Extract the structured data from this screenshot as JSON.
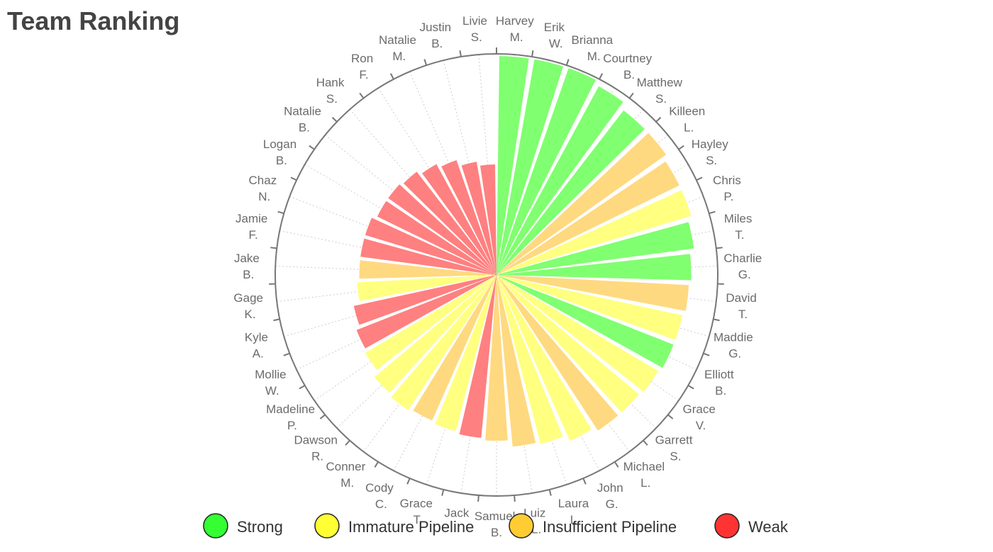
{
  "chart_data": {
    "type": "polar-bar",
    "title": "Team Ranking",
    "categories": [
      "Harvey M.",
      "Erik W.",
      "Brianna M.",
      "Courtney B.",
      "Matthew S.",
      "Killeen L.",
      "Hayley S.",
      "Chris P.",
      "Miles T.",
      "Charlie G.",
      "David T.",
      "Maddie G.",
      "Elliott B.",
      "Grace V.",
      "Garrett S.",
      "Michael L.",
      "John G.",
      "Laura L.",
      "Luiz L.",
      "Samuel B.",
      "Jack",
      "Grace T.",
      "Cody C.",
      "Conner M.",
      "Dawson R.",
      "Madeline P.",
      "Mollie W.",
      "Kyle A.",
      "Gage K.",
      "Jake B.",
      "Jamie F.",
      "Chaz N.",
      "Logan B.",
      "Natalie B.",
      "Hank S.",
      "Ron F.",
      "Natalie M.",
      "Justin B.",
      "Livie S."
    ],
    "rlim": [
      0,
      100
    ],
    "series": [
      {
        "name": "Strong",
        "color": "#80ff70",
        "marker_color": "#33ff33",
        "values": [
          99,
          99,
          99,
          97,
          94,
          null,
          null,
          null,
          90,
          88,
          null,
          null,
          86,
          null,
          null,
          null,
          null,
          null,
          null,
          null,
          null,
          null,
          null,
          null,
          null,
          null,
          null,
          null,
          null,
          null,
          null,
          null,
          null,
          null,
          null,
          null,
          null,
          null,
          null
        ]
      },
      {
        "name": "Immature Pipeline",
        "color": "#ffff80",
        "marker_color": "#ffff33",
        "values": [
          null,
          null,
          null,
          null,
          null,
          null,
          null,
          92,
          null,
          null,
          null,
          86,
          null,
          85,
          84,
          null,
          82,
          79,
          null,
          null,
          null,
          73,
          null,
          73,
          72,
          69,
          null,
          null,
          63,
          null,
          null,
          null,
          null,
          null,
          null,
          null,
          null,
          null,
          null
        ]
      },
      {
        "name": "Insufficient Pipeline",
        "color": "#ffd980",
        "marker_color": "#ffcc33",
        "values": [
          null,
          null,
          null,
          null,
          null,
          94,
          92,
          null,
          null,
          null,
          87,
          null,
          null,
          null,
          null,
          84,
          null,
          null,
          78,
          75,
          null,
          null,
          72,
          null,
          null,
          null,
          null,
          null,
          null,
          62,
          null,
          null,
          null,
          null,
          null,
          null,
          null,
          null,
          null
        ]
      },
      {
        "name": "Weak",
        "color": "#ff8080",
        "marker_color": "#ff3333",
        "values": [
          null,
          null,
          null,
          null,
          null,
          null,
          null,
          null,
          null,
          null,
          null,
          null,
          null,
          null,
          null,
          null,
          null,
          null,
          null,
          null,
          74,
          null,
          null,
          null,
          null,
          null,
          68,
          66,
          null,
          null,
          62,
          62,
          60,
          60,
          59,
          57,
          55,
          52,
          50
        ]
      }
    ]
  }
}
